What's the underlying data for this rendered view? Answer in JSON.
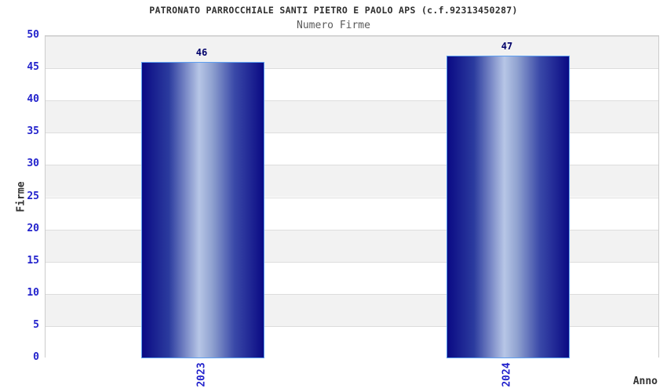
{
  "chart_data": {
    "type": "bar",
    "title": "PATRONATO PARROCCHIALE SANTI PIETRO E PAOLO APS (c.f.92313450287)",
    "subtitle": "Numero Firme",
    "xlabel": "Anno",
    "ylabel": "Firme",
    "categories": [
      "2023",
      "2024"
    ],
    "values": [
      46,
      47
    ],
    "ylim": [
      0,
      50
    ],
    "ytick_step": 5,
    "yticks": [
      0,
      5,
      10,
      15,
      20,
      25,
      30,
      35,
      40,
      45,
      50
    ],
    "grid": "horizontal-bands",
    "legend": "none",
    "colors": {
      "bar_edge": "#0a0a84",
      "bar_mid_light": "#b7c6e6",
      "bar_stroke": "#5c9ff0",
      "tick_label": "#2222cc",
      "value_label": "#00006a",
      "title_text": "#2e2e2e",
      "subtitle_text": "#5a5a5a",
      "axis_title": "#333333",
      "band_fill": "#f2f2f2",
      "grid_line": "#dddddd",
      "plot_border": "#cccccc",
      "background": "#ffffff"
    }
  }
}
